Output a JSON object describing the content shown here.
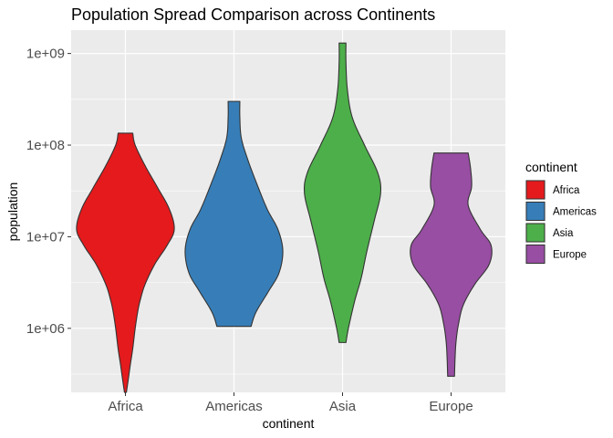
{
  "chart_data": {
    "type": "violin",
    "title": "Population Spread Comparison across Continents",
    "xlabel": "continent",
    "ylabel": "population",
    "y_scale": "log10",
    "ylim": [
      200000,
      1800000000
    ],
    "y_ticks": [
      1000000,
      10000000,
      100000000,
      1000000000
    ],
    "y_tick_labels": [
      "1e+06",
      "1e+07",
      "1e+08",
      "1e+09"
    ],
    "categories": [
      "Africa",
      "Americas",
      "Asia",
      "Europe"
    ],
    "grid": true,
    "legend": {
      "title": "continent",
      "placement": "right",
      "entries": [
        "Africa",
        "Americas",
        "Asia",
        "Europe"
      ]
    },
    "series": [
      {
        "category": "Africa",
        "color": "#E41A1C",
        "min": 200000,
        "max": 135000000,
        "profile": [
          [
            200000,
            0.02
          ],
          [
            280000,
            0.06
          ],
          [
            400000,
            0.1
          ],
          [
            600000,
            0.15
          ],
          [
            1000000,
            0.2
          ],
          [
            1500000,
            0.25
          ],
          [
            2000000,
            0.3
          ],
          [
            3000000,
            0.4
          ],
          [
            5000000,
            0.6
          ],
          [
            8000000,
            0.85
          ],
          [
            12000000,
            1.0
          ],
          [
            20000000,
            0.9
          ],
          [
            35000000,
            0.65
          ],
          [
            60000000,
            0.4
          ],
          [
            100000000,
            0.2
          ],
          [
            135000000,
            0.15
          ]
        ]
      },
      {
        "category": "Americas",
        "color": "#377EB8",
        "min": 1050000,
        "max": 300000000,
        "profile": [
          [
            1050000,
            0.35
          ],
          [
            1500000,
            0.45
          ],
          [
            2500000,
            0.7
          ],
          [
            4000000,
            0.92
          ],
          [
            7000000,
            1.0
          ],
          [
            12000000,
            0.9
          ],
          [
            20000000,
            0.68
          ],
          [
            40000000,
            0.45
          ],
          [
            70000000,
            0.28
          ],
          [
            120000000,
            0.15
          ],
          [
            200000000,
            0.12
          ],
          [
            300000000,
            0.12
          ]
        ]
      },
      {
        "category": "Asia",
        "color": "#4DAF4A",
        "min": 700000,
        "max": 1300000000,
        "profile": [
          [
            700000,
            0.07
          ],
          [
            1000000,
            0.12
          ],
          [
            2000000,
            0.25
          ],
          [
            3500000,
            0.38
          ],
          [
            7000000,
            0.5
          ],
          [
            15000000,
            0.65
          ],
          [
            30000000,
            0.78
          ],
          [
            50000000,
            0.72
          ],
          [
            100000000,
            0.45
          ],
          [
            200000000,
            0.2
          ],
          [
            400000000,
            0.1
          ],
          [
            800000000,
            0.07
          ],
          [
            1300000000,
            0.07
          ]
        ]
      },
      {
        "category": "Europe",
        "color": "#984EA3",
        "min": 300000,
        "max": 82000000,
        "profile": [
          [
            300000,
            0.07
          ],
          [
            450000,
            0.08
          ],
          [
            700000,
            0.1
          ],
          [
            1100000,
            0.15
          ],
          [
            1800000,
            0.25
          ],
          [
            3000000,
            0.48
          ],
          [
            5000000,
            0.78
          ],
          [
            8000000,
            0.82
          ],
          [
            12000000,
            0.6
          ],
          [
            22000000,
            0.35
          ],
          [
            35000000,
            0.42
          ],
          [
            55000000,
            0.4
          ],
          [
            82000000,
            0.35
          ]
        ]
      }
    ]
  }
}
